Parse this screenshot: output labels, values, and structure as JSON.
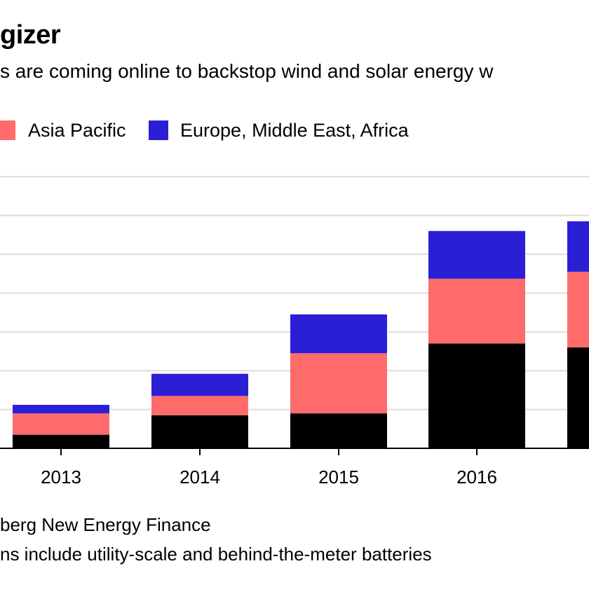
{
  "title_fragment": "gizer",
  "subtitle_fragment": "s are coming online to backstop wind and solar energy w",
  "legend": [
    {
      "label": "",
      "color": "#000000"
    },
    {
      "label": "Asia Pacific",
      "color": "#ff6b6b"
    },
    {
      "label": "Europe, Middle East, Africa",
      "color": "#2b1fd6"
    }
  ],
  "source_fragment": "berg New Energy Finance",
  "footnote_fragment": "ns include utility-scale and behind-the-meter batteries",
  "chart_data": {
    "type": "bar",
    "stacked": true,
    "categories": [
      "2013",
      "2014",
      "2015",
      "2016",
      ""
    ],
    "series": [
      {
        "name": "",
        "color": "#000000",
        "values": [
          0.35,
          0.85,
          0.9,
          2.7,
          2.6
        ]
      },
      {
        "name": "Asia Pacific",
        "color": "#ff6b6b",
        "values": [
          0.55,
          0.5,
          1.55,
          1.67,
          1.95
        ]
      },
      {
        "name": "Europe, Middle East, Africa",
        "color": "#2b1fd6",
        "values": [
          0.22,
          0.57,
          1.0,
          1.23,
          1.3
        ]
      }
    ],
    "ylim": [
      0,
      7
    ],
    "grid": true,
    "gridline_values": [
      1,
      2,
      3,
      4,
      5,
      6,
      7
    ],
    "legend_position": "top"
  }
}
